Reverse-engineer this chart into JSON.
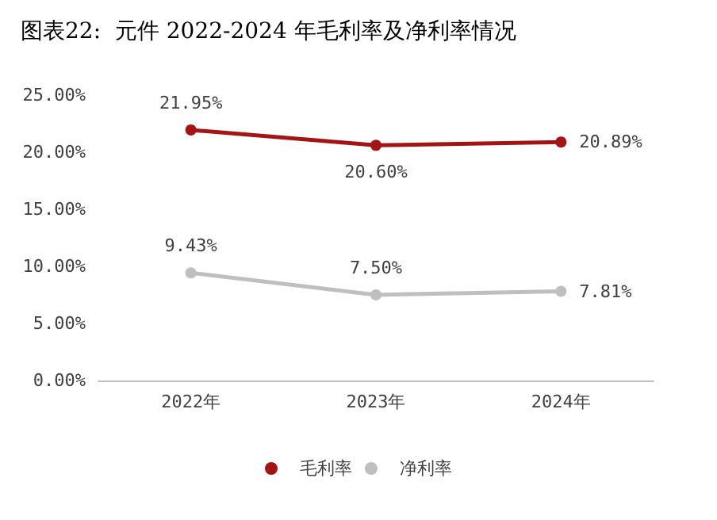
{
  "chart_data": {
    "type": "line",
    "title": "图表22:  元件 2022-2024 年毛利率及净利率情况",
    "categories": [
      "2022年",
      "2023年",
      "2024年"
    ],
    "series": [
      {
        "name": "毛利率",
        "color": "#a31515",
        "values": [
          21.95,
          20.6,
          20.89
        ],
        "value_labels": [
          "21.95%",
          "20.60%",
          "20.89%"
        ]
      },
      {
        "name": "净利率",
        "color": "#bfbfbf",
        "values": [
          9.43,
          7.5,
          7.81
        ],
        "value_labels": [
          "9.43%",
          "7.50%",
          "7.81%"
        ]
      }
    ],
    "ylim": [
      0,
      25
    ],
    "yticks": [
      {
        "value": 0,
        "label": "0.00%"
      },
      {
        "value": 5,
        "label": "5.00%"
      },
      {
        "value": 10,
        "label": "10.00%"
      },
      {
        "value": 15,
        "label": "15.00%"
      },
      {
        "value": 20,
        "label": "20.00%"
      },
      {
        "value": 25,
        "label": "25.00%"
      }
    ],
    "grid": false,
    "legend": "bottom",
    "marker": "circle",
    "line_style": "solid"
  }
}
